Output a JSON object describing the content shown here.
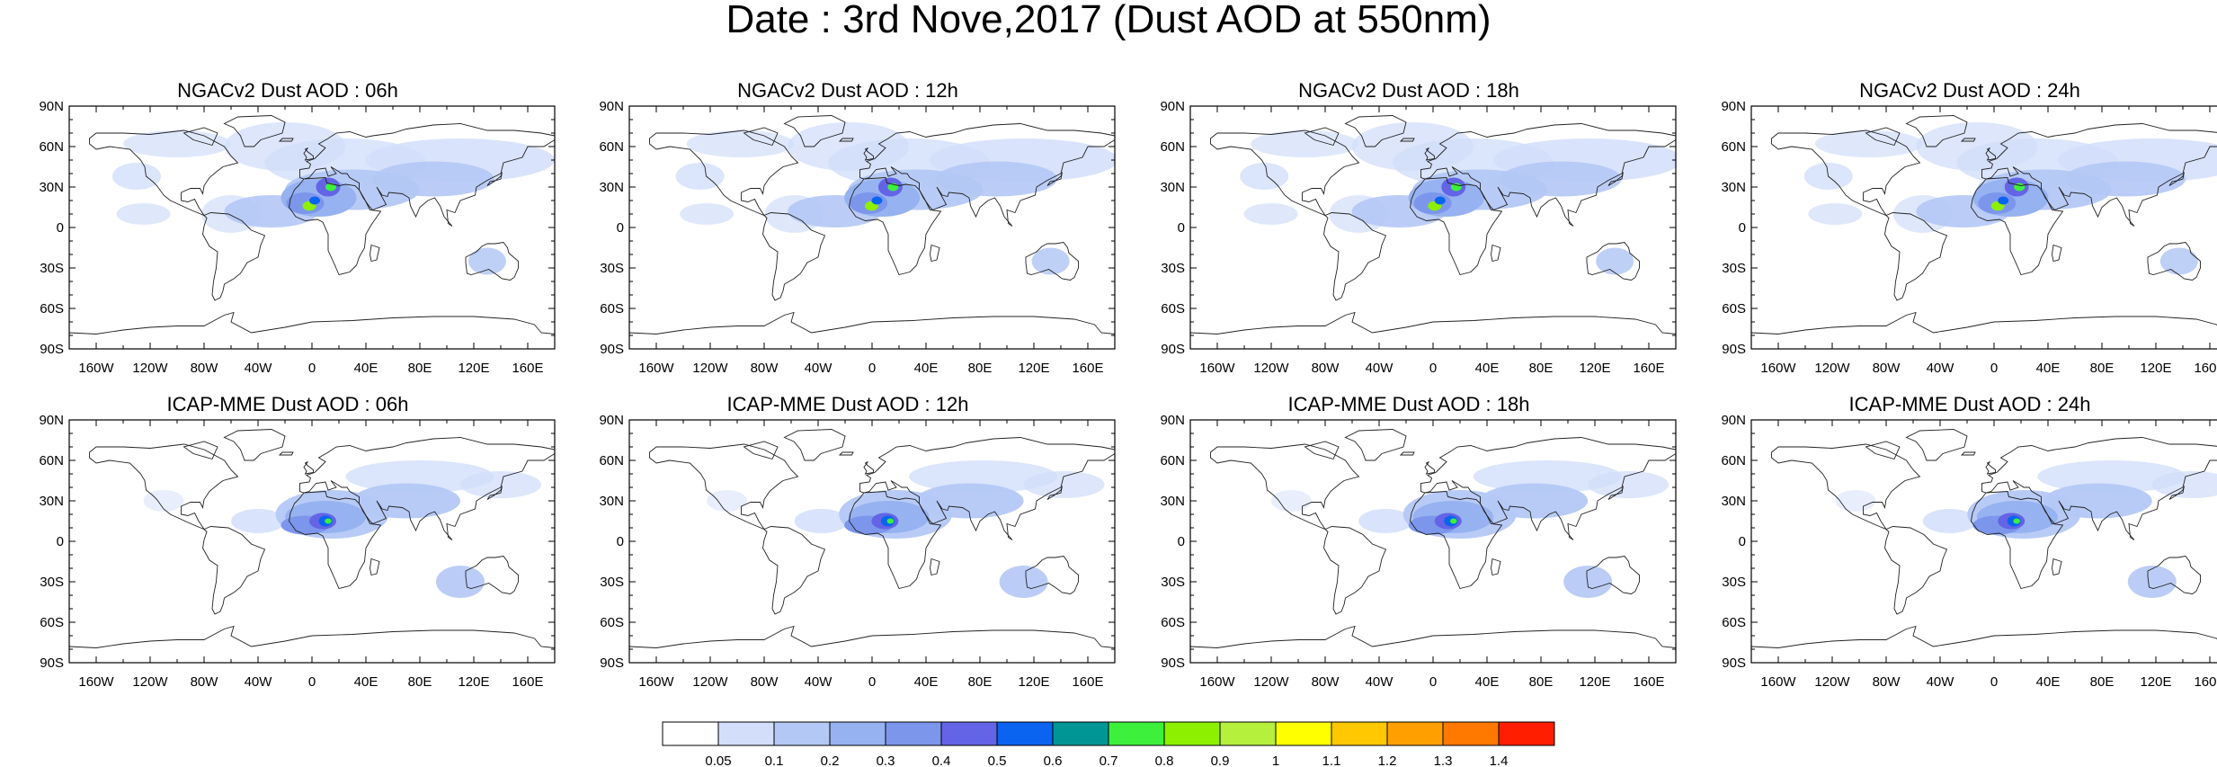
{
  "main_title": "Date : 3rd Nove,2017 (Dust AOD at 550nm)",
  "axes": {
    "lat_labels": [
      "90N",
      "60N",
      "30N",
      "0",
      "30S",
      "60S",
      "90S"
    ],
    "lon_labels": [
      "160W",
      "120W",
      "80W",
      "40W",
      "0",
      "40E",
      "80E",
      "120E",
      "160E"
    ]
  },
  "panels": [
    {
      "title": "NGACv2 Dust AOD : 06h",
      "model": "NGACv2",
      "forecast_hour": "06h"
    },
    {
      "title": "NGACv2 Dust AOD : 12h",
      "model": "NGACv2",
      "forecast_hour": "12h"
    },
    {
      "title": "NGACv2 Dust AOD : 18h",
      "model": "NGACv2",
      "forecast_hour": "18h"
    },
    {
      "title": "NGACv2 Dust AOD : 24h",
      "model": "NGACv2",
      "forecast_hour": "24h"
    },
    {
      "title": "ICAP-MME Dust AOD : 06h",
      "model": "ICAP-MME",
      "forecast_hour": "06h"
    },
    {
      "title": "ICAP-MME Dust AOD : 12h",
      "model": "ICAP-MME",
      "forecast_hour": "12h"
    },
    {
      "title": "ICAP-MME Dust AOD : 18h",
      "model": "ICAP-MME",
      "forecast_hour": "18h"
    },
    {
      "title": "ICAP-MME Dust AOD : 24h",
      "model": "ICAP-MME",
      "forecast_hour": "24h"
    }
  ],
  "colorbar": {
    "labels": [
      "0.05",
      "0.1",
      "0.2",
      "0.3",
      "0.4",
      "0.5",
      "0.6",
      "0.7",
      "0.8",
      "0.9",
      "1",
      "1.1",
      "1.2",
      "1.3",
      "1.4"
    ],
    "colors": [
      "#ffffff",
      "#d2defa",
      "#b4c8f5",
      "#96b2f0",
      "#7c96ec",
      "#6464e6",
      "#0a64f0",
      "#009696",
      "#3cf03c",
      "#8cf000",
      "#b4f03c",
      "#ffff00",
      "#ffc800",
      "#ffa000",
      "#ff7800",
      "#ff1e00"
    ]
  }
}
